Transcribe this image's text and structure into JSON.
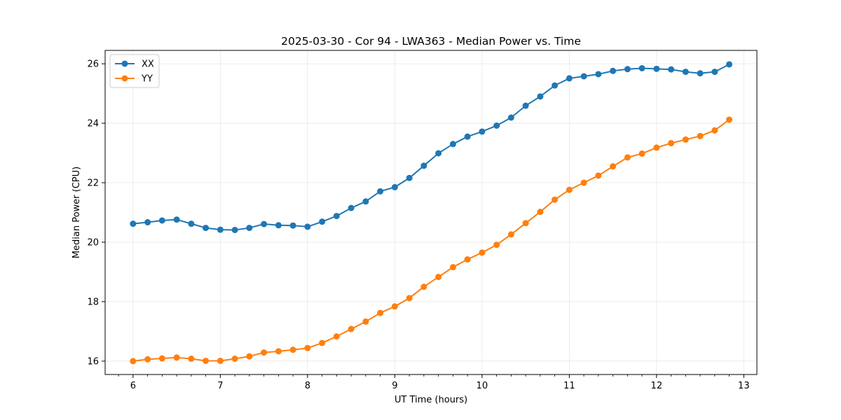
{
  "chart_data": {
    "type": "line",
    "title": "2025-03-30 - Cor 94 - LWA363 - Median Power vs. Time",
    "xlabel": "UT Time (hours)",
    "ylabel": "Median Power (CPU)",
    "xlim": [
      5.68,
      13.15
    ],
    "ylim": [
      15.55,
      26.45
    ],
    "xticks": [
      6,
      7,
      8,
      9,
      10,
      11,
      12,
      13
    ],
    "yticks": [
      16,
      18,
      20,
      22,
      24,
      26
    ],
    "grid": true,
    "legend_position": "top-left",
    "x": [
      6.0,
      6.167,
      6.333,
      6.5,
      6.667,
      6.833,
      7.0,
      7.167,
      7.333,
      7.5,
      7.667,
      7.833,
      8.0,
      8.167,
      8.333,
      8.5,
      8.667,
      8.833,
      9.0,
      9.167,
      9.333,
      9.5,
      9.667,
      9.833,
      10.0,
      10.167,
      10.333,
      10.5,
      10.667,
      10.833,
      11.0,
      11.167,
      11.333,
      11.5,
      11.667,
      11.833,
      12.0,
      12.167,
      12.333,
      12.5,
      12.667,
      12.833
    ],
    "series": [
      {
        "name": "XX",
        "color": "#1f77b4",
        "values": [
          20.62,
          20.67,
          20.73,
          20.76,
          20.62,
          20.48,
          20.42,
          20.41,
          20.48,
          20.61,
          20.57,
          20.56,
          20.52,
          20.69,
          20.88,
          21.15,
          21.37,
          21.71,
          21.85,
          22.16,
          22.57,
          22.99,
          23.3,
          23.55,
          23.72,
          23.92,
          24.19,
          24.59,
          24.9,
          25.27,
          25.51,
          25.58,
          25.65,
          25.76,
          25.82,
          25.85,
          25.83,
          25.81,
          25.73,
          25.68,
          25.73,
          25.98
        ]
      },
      {
        "name": "YY",
        "color": "#ff7f0e",
        "values": [
          16.0,
          16.06,
          16.09,
          16.12,
          16.08,
          16.01,
          16.01,
          16.08,
          16.16,
          16.29,
          16.33,
          16.38,
          16.44,
          16.61,
          16.83,
          17.08,
          17.33,
          17.62,
          17.84,
          18.12,
          18.5,
          18.83,
          19.16,
          19.42,
          19.65,
          19.91,
          20.26,
          20.64,
          21.02,
          21.43,
          21.76,
          22.0,
          22.24,
          22.55,
          22.85,
          22.98,
          23.18,
          23.33,
          23.45,
          23.57,
          23.76,
          24.12
        ]
      }
    ]
  }
}
